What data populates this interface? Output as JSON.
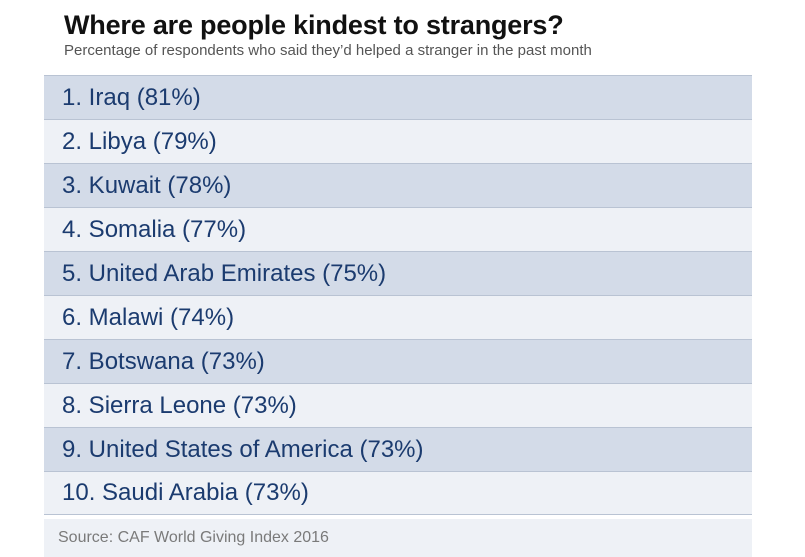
{
  "chart_data": {
    "type": "table",
    "title": "Where are people kindest to strangers?",
    "subtitle": "Percentage of respondents who said they’d helped a stranger in the past month",
    "rows": [
      {
        "rank": "1.",
        "country": "Iraq",
        "value": 81,
        "label": "1. Iraq (81%)"
      },
      {
        "rank": "2.",
        "country": "Libya",
        "value": 79,
        "label": "2. Libya (79%)"
      },
      {
        "rank": "3.",
        "country": "Kuwait",
        "value": 78,
        "label": "3. Kuwait (78%)"
      },
      {
        "rank": "4.",
        "country": "Somalia",
        "value": 77,
        "label": "4. Somalia (77%)"
      },
      {
        "rank": "5.",
        "country": "United Arab Emirates",
        "value": 75,
        "label": "5. United Arab Emirates (75%)"
      },
      {
        "rank": "6.",
        "country": "Malawi",
        "value": 74,
        "label": "6. Malawi (74%)"
      },
      {
        "rank": "7.",
        "country": "Botswana",
        "value": 73,
        "label": "7. Botswana (73%)"
      },
      {
        "rank": "8.",
        "country": "Sierra Leone",
        "value": 73,
        "label": "8. Sierra Leone (73%)"
      },
      {
        "rank": "9.",
        "country": "United States of America",
        "value": 73,
        "label": "9. United States of America (73%)"
      },
      {
        "rank": "10.",
        "country": "Saudi Arabia",
        "value": 73,
        "label": "10. Saudi Arabia (73%)"
      }
    ],
    "source": "Source: CAF World Giving Index 2016"
  },
  "colors": {
    "row_odd": "#d3dbe8",
    "row_even": "#eef1f6",
    "row_text": "#1b3b6f",
    "title_text": "#111111",
    "subtitle_text": "#555555",
    "source_text": "#7a7a7a"
  }
}
